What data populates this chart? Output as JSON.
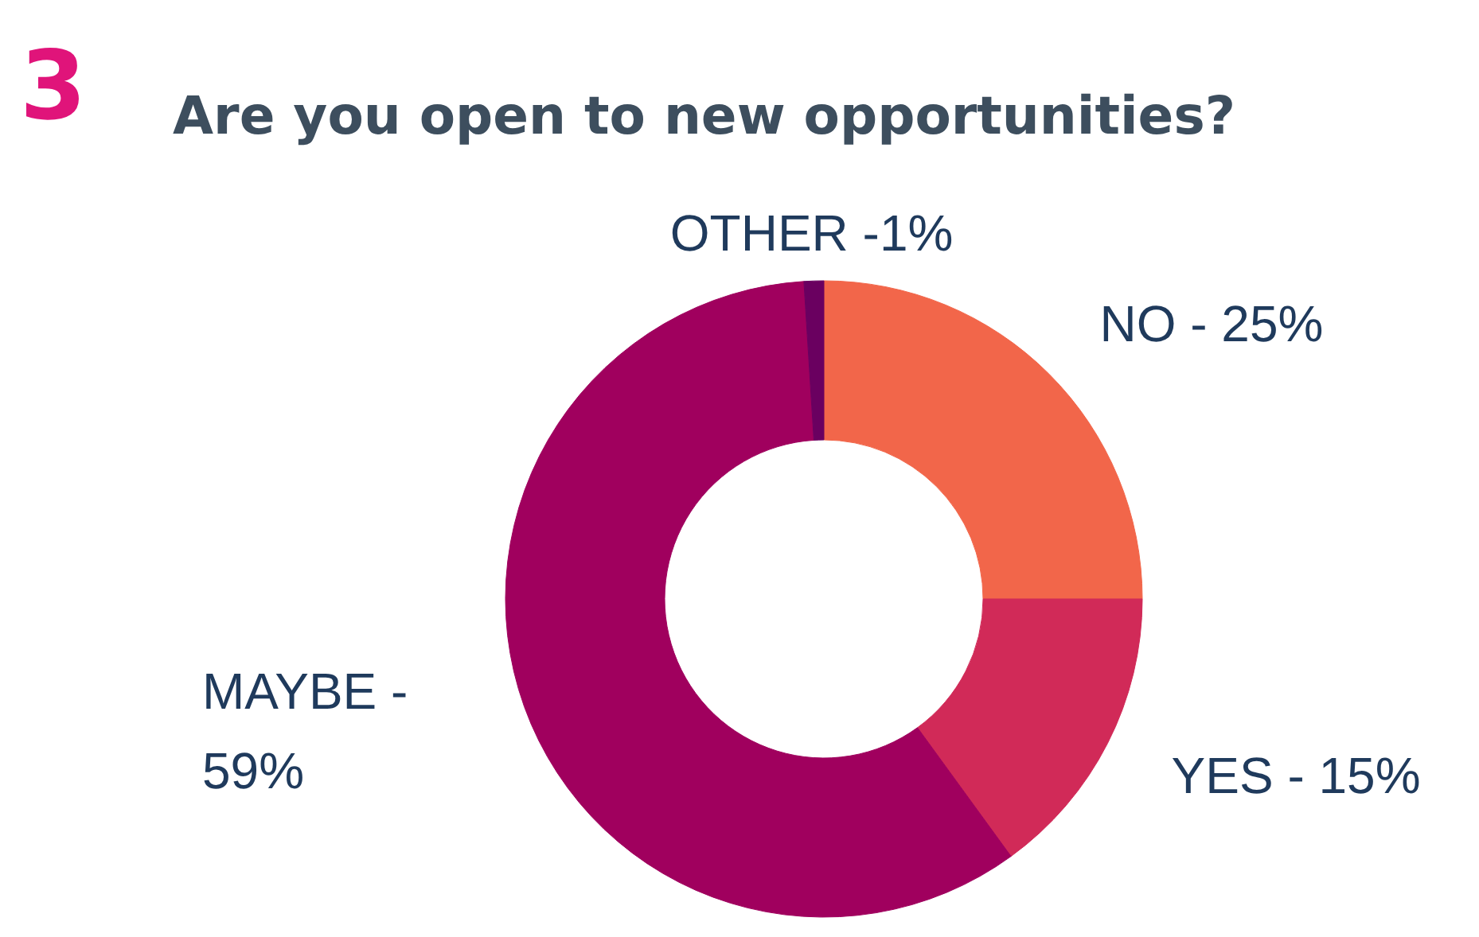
{
  "chart_data": {
    "type": "donut",
    "title": "Are you open to new opportunities?",
    "categories": [
      "NO - 25%",
      "YES - 15%",
      "MAYBE - 59%",
      "OTHER -1%"
    ],
    "values": [
      25,
      15,
      59,
      1
    ],
    "colors": [
      "#f2664a",
      "#d12a58",
      "#a0005e",
      "#6a0060"
    ],
    "annotations": [
      "3"
    ]
  }
}
